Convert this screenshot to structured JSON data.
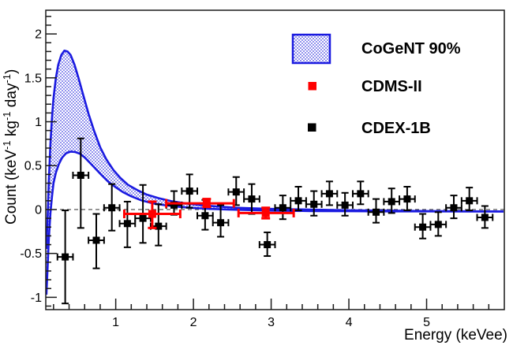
{
  "colors": {
    "band_edge": "#1a1ae0",
    "band_hatch": "#9393ee",
    "cdms_red": "#ff0000",
    "cdex_black": "#000000",
    "zero_line": "#444444",
    "frame": "#1a1a1a"
  },
  "legend": {
    "items": [
      {
        "label": "CoGeNT 90%",
        "swatch": "blue-hatched-box"
      },
      {
        "label": "CDMS-II",
        "swatch": "red-square"
      },
      {
        "label": "CDEX-1B",
        "swatch": "black-square"
      }
    ]
  },
  "chart_data": {
    "type": "scatter",
    "title": "",
    "xlabel": "Energy (keVee)",
    "ylabel": "Count (keV⁻¹ kg⁻¹ day⁻¹)",
    "ylabel_parts": [
      {
        "t": "Count (keV"
      },
      {
        "t": "-1",
        "sup": true
      },
      {
        "t": " kg",
        "sup": false
      },
      {
        "t": "-1",
        "sup": true
      },
      {
        "t": " day",
        "sup": false
      },
      {
        "t": "-1",
        "sup": true
      },
      {
        "t": ")",
        "sup": false
      }
    ],
    "xlim": [
      0.1,
      6.0
    ],
    "ylim": [
      -1.14,
      2.27
    ],
    "grid": false,
    "legend_position": "top-right-inside",
    "x_major_ticks": [
      1,
      2,
      3,
      4,
      5
    ],
    "x_tick_labels": [
      "1",
      "2",
      "3",
      "4",
      "5"
    ],
    "x_minor_step": 0.2,
    "y_major_ticks": [
      -1,
      -0.5,
      0,
      0.5,
      1,
      1.5,
      2
    ],
    "y_tick_labels": [
      "-1",
      "-0.5",
      "0",
      "0.5",
      "1",
      "1.5",
      "2"
    ],
    "y_minor_step": 0.1,
    "zero_line": {
      "y": 0,
      "style": "dashed"
    },
    "series": [
      {
        "name": "CoGeNT 90%",
        "type": "band",
        "upper": [
          [
            0.108,
            -0.45
          ],
          [
            0.125,
            -0.05
          ],
          [
            0.14,
            0.33
          ],
          [
            0.16,
            0.75
          ],
          [
            0.18,
            1.05
          ],
          [
            0.2,
            1.27
          ],
          [
            0.23,
            1.5
          ],
          [
            0.26,
            1.65
          ],
          [
            0.3,
            1.76
          ],
          [
            0.34,
            1.81
          ],
          [
            0.38,
            1.8
          ],
          [
            0.42,
            1.76
          ],
          [
            0.47,
            1.65
          ],
          [
            0.52,
            1.5
          ],
          [
            0.58,
            1.31
          ],
          [
            0.65,
            1.09
          ],
          [
            0.72,
            0.9
          ],
          [
            0.8,
            0.71
          ],
          [
            0.88,
            0.57
          ],
          [
            0.97,
            0.45
          ],
          [
            1.06,
            0.36
          ],
          [
            1.16,
            0.28
          ],
          [
            1.28,
            0.22
          ],
          [
            1.4,
            0.17
          ],
          [
            1.55,
            0.13
          ],
          [
            1.72,
            0.095
          ],
          [
            1.9,
            0.07
          ],
          [
            2.1,
            0.05
          ],
          [
            2.3,
            0.035
          ],
          [
            2.55,
            0.02
          ],
          [
            2.8,
            0.012
          ],
          [
            3.1,
            0.005
          ],
          [
            3.5,
            0.0
          ],
          [
            4.0,
            -0.008
          ],
          [
            4.5,
            -0.013
          ],
          [
            5.0,
            -0.017
          ],
          [
            5.5,
            -0.02
          ],
          [
            5.99,
            -0.022
          ]
        ],
        "lower": [
          [
            0.108,
            -0.97
          ],
          [
            0.125,
            -0.62
          ],
          [
            0.14,
            -0.33
          ],
          [
            0.16,
            -0.04
          ],
          [
            0.18,
            0.15
          ],
          [
            0.2,
            0.3
          ],
          [
            0.23,
            0.42
          ],
          [
            0.27,
            0.52
          ],
          [
            0.31,
            0.59
          ],
          [
            0.36,
            0.64
          ],
          [
            0.42,
            0.66
          ],
          [
            0.48,
            0.655
          ],
          [
            0.54,
            0.635
          ],
          [
            0.6,
            0.595
          ],
          [
            0.67,
            0.53
          ],
          [
            0.74,
            0.465
          ],
          [
            0.82,
            0.39
          ],
          [
            0.9,
            0.32
          ],
          [
            0.99,
            0.26
          ],
          [
            1.09,
            0.2
          ],
          [
            1.2,
            0.15
          ],
          [
            1.33,
            0.105
          ],
          [
            1.48,
            0.07
          ],
          [
            1.64,
            0.048
          ],
          [
            1.82,
            0.03
          ],
          [
            2.0,
            0.018
          ],
          [
            2.2,
            0.008
          ],
          [
            2.45,
            0.0
          ],
          [
            2.7,
            -0.006
          ],
          [
            3.0,
            -0.012
          ],
          [
            3.5,
            -0.017
          ],
          [
            4.0,
            -0.019
          ],
          [
            4.5,
            -0.021
          ],
          [
            5.0,
            -0.021
          ],
          [
            5.5,
            -0.022
          ],
          [
            5.99,
            -0.022
          ]
        ]
      },
      {
        "name": "CDEX-1B",
        "type": "scatter-errorbar",
        "marker": "square",
        "xerr": 0.1,
        "points": [
          {
            "x": 0.35,
            "y": -0.54,
            "ylo": -1.07,
            "yhi": -0.01
          },
          {
            "x": 0.55,
            "y": 0.39,
            "ylo": -0.21,
            "yhi": 0.81
          },
          {
            "x": 0.75,
            "y": -0.35,
            "ylo": -0.67,
            "yhi": -0.05
          },
          {
            "x": 0.95,
            "y": 0.02,
            "ylo": -0.24,
            "yhi": 0.29
          },
          {
            "x": 1.15,
            "y": -0.16,
            "ylo": -0.43,
            "yhi": 0.09
          },
          {
            "x": 1.35,
            "y": -0.1,
            "ylo": -0.38,
            "yhi": 0.28
          },
          {
            "x": 1.55,
            "y": -0.19,
            "ylo": -0.41,
            "yhi": 0.06
          },
          {
            "x": 1.75,
            "y": 0.05,
            "ylo": -0.06,
            "yhi": 0.21
          },
          {
            "x": 1.95,
            "y": 0.21,
            "ylo": 0.02,
            "yhi": 0.4
          },
          {
            "x": 2.15,
            "y": -0.07,
            "ylo": -0.23,
            "yhi": 0.11
          },
          {
            "x": 2.35,
            "y": -0.15,
            "ylo": -0.31,
            "yhi": 0.05
          },
          {
            "x": 2.55,
            "y": 0.2,
            "ylo": 0.05,
            "yhi": 0.37
          },
          {
            "x": 2.75,
            "y": 0.12,
            "ylo": -0.05,
            "yhi": 0.29
          },
          {
            "x": 2.95,
            "y": -0.4,
            "ylo": -0.53,
            "yhi": -0.26
          },
          {
            "x": 3.15,
            "y": 0.02,
            "ylo": -0.11,
            "yhi": 0.16
          },
          {
            "x": 3.35,
            "y": 0.1,
            "ylo": -0.01,
            "yhi": 0.26
          },
          {
            "x": 3.55,
            "y": 0.06,
            "ylo": -0.07,
            "yhi": 0.21
          },
          {
            "x": 3.75,
            "y": 0.18,
            "ylo": 0.05,
            "yhi": 0.32
          },
          {
            "x": 3.95,
            "y": 0.05,
            "ylo": -0.07,
            "yhi": 0.19
          },
          {
            "x": 4.15,
            "y": 0.18,
            "ylo": 0.06,
            "yhi": 0.32
          },
          {
            "x": 4.35,
            "y": -0.03,
            "ylo": -0.15,
            "yhi": 0.12
          },
          {
            "x": 4.55,
            "y": 0.09,
            "ylo": -0.04,
            "yhi": 0.24
          },
          {
            "x": 4.75,
            "y": 0.12,
            "ylo": -0.01,
            "yhi": 0.26
          },
          {
            "x": 4.95,
            "y": -0.2,
            "ylo": -0.33,
            "yhi": -0.05
          },
          {
            "x": 5.15,
            "y": -0.17,
            "ylo": -0.3,
            "yhi": -0.03
          },
          {
            "x": 5.35,
            "y": 0.02,
            "ylo": -0.1,
            "yhi": 0.16
          },
          {
            "x": 5.55,
            "y": 0.1,
            "ylo": -0.01,
            "yhi": 0.25
          },
          {
            "x": 5.75,
            "y": -0.09,
            "ylo": -0.21,
            "yhi": 0.04
          }
        ]
      },
      {
        "name": "CDMS-II",
        "type": "scatter-errorbar",
        "marker": "square",
        "points": [
          {
            "x": 1.47,
            "y": -0.05,
            "xlo": 1.11,
            "xhi": 1.83,
            "ylo": -0.21,
            "yhi": 0.09
          },
          {
            "x": 2.17,
            "y": 0.07,
            "xlo": 1.65,
            "xhi": 2.52,
            "ylo": 0.03,
            "yhi": 0.12
          },
          {
            "x": 2.93,
            "y": -0.04,
            "xlo": 2.58,
            "xhi": 3.29,
            "ylo": -0.1,
            "yhi": 0.02
          }
        ]
      }
    ]
  }
}
